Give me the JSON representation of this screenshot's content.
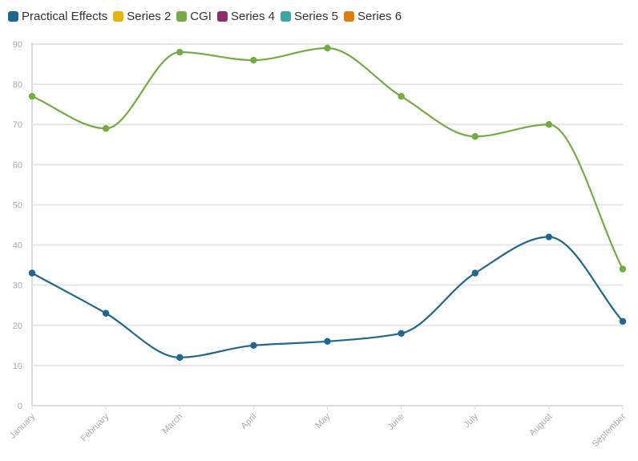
{
  "chart_data": {
    "type": "line",
    "title": "",
    "xlabel": "",
    "ylabel": "",
    "ylim": [
      0,
      90
    ],
    "yticks": [
      0,
      10,
      20,
      30,
      40,
      50,
      60,
      70,
      80,
      90
    ],
    "grid": true,
    "legend_position": "top-left",
    "categories": [
      "January",
      "February",
      "March",
      "April",
      "May",
      "June",
      "July",
      "August",
      "September"
    ],
    "legend": [
      {
        "name": "Practical Effects",
        "color": "#1f6791"
      },
      {
        "name": "Series 2",
        "color": "#e8b20d"
      },
      {
        "name": "CGI",
        "color": "#73ac43"
      },
      {
        "name": "Series 4",
        "color": "#8c2c6b"
      },
      {
        "name": "Series 5",
        "color": "#3aa7a5"
      },
      {
        "name": "Series 6",
        "color": "#e07c12"
      }
    ],
    "series": [
      {
        "name": "Practical Effects",
        "color": "#1f6791",
        "values": [
          33,
          23,
          12,
          15,
          16,
          18,
          33,
          42,
          21
        ]
      },
      {
        "name": "CGI",
        "color": "#73ac43",
        "values": [
          77,
          69,
          88,
          86,
          89,
          77,
          67,
          70,
          34
        ]
      }
    ]
  }
}
